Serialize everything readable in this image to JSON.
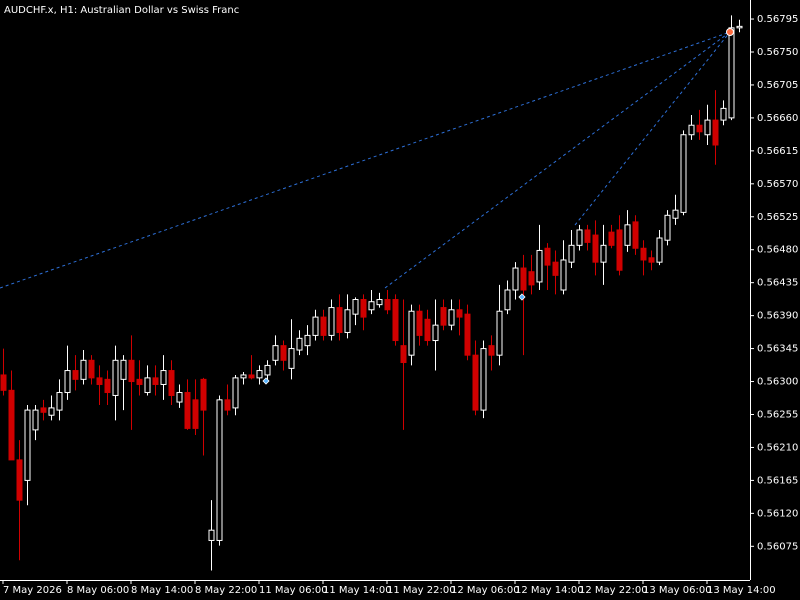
{
  "chart_data": {
    "type": "candlestick",
    "title": "AUDCHF.x, H1:  Australian Dollar vs Swiss Franc",
    "up_color": "#ffffff",
    "down_color": "#d00000",
    "background": "#000000",
    "categories": [
      "7 May 2026",
      null,
      null,
      null,
      null,
      null,
      null,
      null,
      "8 May 06:00",
      null,
      null,
      null,
      null,
      null,
      null,
      null,
      "8 May 14:00",
      null,
      null,
      null,
      null,
      null,
      null,
      null,
      "8 May 22:00",
      null,
      null,
      null,
      null,
      null,
      null,
      null,
      "11 May 06:00",
      null,
      null,
      null,
      null,
      null,
      null,
      null,
      "11 May 14:00",
      null,
      null,
      null,
      null,
      null,
      null,
      null,
      "11 May 22:00",
      null,
      null,
      null,
      null,
      null,
      null,
      null,
      "12 May 06:00",
      null,
      null,
      null,
      null,
      null,
      null,
      null,
      "12 May 14:00",
      null,
      null,
      null,
      null,
      null,
      null,
      null,
      "12 May 22:00",
      null,
      null,
      null,
      null,
      null,
      null,
      null,
      "13 May 06:00",
      null,
      null,
      null,
      null,
      null,
      null,
      null,
      "13 May 14:00",
      null,
      null,
      null,
      null
    ],
    "open": [
      0.56309,
      0.56288,
      0.56193,
      0.56165,
      0.56234,
      0.56264,
      0.56254,
      0.56261,
      0.56285,
      0.56315,
      0.56303,
      0.56329,
      0.56305,
      0.56303,
      0.56281,
      0.56303,
      0.56329,
      0.56303,
      0.56285,
      0.56305,
      0.56296,
      0.56315,
      0.56272,
      0.56285,
      0.56275,
      0.56303,
      0.56083,
      0.56083,
      0.56275,
      0.56264,
      0.56305,
      0.56309,
      0.56305,
      0.56309,
      0.56329,
      0.56349,
      0.56318,
      0.56343,
      0.56349,
      0.56363,
      0.56388,
      0.56363,
      0.56401,
      0.56367,
      0.56392,
      0.56412,
      0.56398,
      0.56405,
      0.56412,
      0.56412,
      0.56349,
      0.56336,
      0.56396,
      0.56385,
      0.56356,
      0.56401,
      0.56377,
      0.56398,
      0.56392,
      0.56336,
      0.56261,
      0.56349,
      0.56336,
      0.56398,
      0.56425,
      0.56455,
      0.5645,
      0.56436,
      0.56482,
      0.56463,
      0.56425,
      0.56463,
      0.56486,
      0.56507,
      0.565,
      0.56463,
      0.56504,
      0.56507,
      0.56486,
      0.56518,
      0.56482,
      0.56469,
      0.56463,
      0.56493,
      0.56523,
      0.56531,
      0.56637,
      0.5665,
      0.56637,
      0.56657,
      0.56657,
      0.5666,
      0.56783
    ],
    "high": [
      0.56345,
      0.56315,
      0.5622,
      0.56268,
      0.56268,
      0.56275,
      0.56281,
      0.56303,
      0.56349,
      0.56336,
      0.56343,
      0.56336,
      0.56322,
      0.56315,
      0.56349,
      0.56336,
      0.56363,
      0.56329,
      0.56322,
      0.56322,
      0.56336,
      0.56329,
      0.56296,
      0.56303,
      0.56303,
      0.56305,
      0.56138,
      0.56281,
      0.56296,
      0.56309,
      0.56313,
      0.56336,
      0.56322,
      0.56329,
      0.56363,
      0.56356,
      0.56385,
      0.5637,
      0.56377,
      0.56398,
      0.56398,
      0.56412,
      0.56419,
      0.56419,
      0.56415,
      0.56419,
      0.56425,
      0.56421,
      0.56425,
      0.56419,
      0.56412,
      0.56405,
      0.56405,
      0.56398,
      0.56412,
      0.56412,
      0.56412,
      0.56412,
      0.56405,
      0.56356,
      0.56356,
      0.56363,
      0.56432,
      0.56438,
      0.56463,
      0.56473,
      0.56473,
      0.56514,
      0.56489,
      0.56479,
      0.56493,
      0.56507,
      0.56514,
      0.56514,
      0.5652,
      0.56514,
      0.56514,
      0.56527,
      0.56534,
      0.56527,
      0.56493,
      0.56479,
      0.56507,
      0.56534,
      0.56555,
      0.56643,
      0.56664,
      0.56671,
      0.56678,
      0.56698,
      0.56684,
      0.568,
      0.56794
    ],
    "low": [
      0.56281,
      0.56193,
      0.56056,
      0.56131,
      0.5622,
      0.56247,
      0.56247,
      0.56247,
      0.56275,
      0.56288,
      0.56296,
      0.56296,
      0.56268,
      0.56268,
      0.56247,
      0.56261,
      0.56234,
      0.56281,
      0.56281,
      0.56281,
      0.56275,
      0.56268,
      0.56264,
      0.56234,
      0.56227,
      0.56199,
      0.56042,
      0.56076,
      0.56254,
      0.56254,
      0.56296,
      0.56303,
      0.56296,
      0.56303,
      0.56322,
      0.56315,
      0.56303,
      0.56336,
      0.56336,
      0.56356,
      0.56356,
      0.56356,
      0.56356,
      0.56359,
      0.56377,
      0.5637,
      0.56392,
      0.56401,
      0.56392,
      0.56349,
      0.56234,
      0.56322,
      0.56349,
      0.56349,
      0.56315,
      0.5637,
      0.5637,
      0.56363,
      0.56329,
      0.56254,
      0.5625,
      0.56315,
      0.56322,
      0.56392,
      0.56412,
      0.56336,
      0.56419,
      0.56425,
      0.56425,
      0.56419,
      0.56419,
      0.56455,
      0.56479,
      0.56479,
      0.56445,
      0.56432,
      0.56482,
      0.56445,
      0.56477,
      0.56473,
      0.56445,
      0.56452,
      0.56459,
      0.56486,
      0.56514,
      0.56527,
      0.5663,
      0.5663,
      0.56623,
      0.56596,
      0.5665,
      0.56657,
      0.56777
    ],
    "close": [
      0.56288,
      0.56193,
      0.56138,
      0.56261,
      0.56261,
      0.56258,
      0.56264,
      0.56285,
      0.56315,
      0.56303,
      0.56329,
      0.56305,
      0.56296,
      0.56285,
      0.56329,
      0.56329,
      0.563,
      0.56296,
      0.56305,
      0.56296,
      0.56315,
      0.56281,
      0.56285,
      0.56236,
      0.56236,
      0.56261,
      0.56097,
      0.56275,
      0.56261,
      0.56305,
      0.56309,
      0.56305,
      0.56315,
      0.56322,
      0.56349,
      0.56329,
      0.56345,
      0.56359,
      0.56363,
      0.56388,
      0.56363,
      0.56401,
      0.56367,
      0.56398,
      0.56412,
      0.56388,
      0.56409,
      0.56412,
      0.56398,
      0.56356,
      0.56326,
      0.56396,
      0.56363,
      0.56356,
      0.56377,
      0.56377,
      0.56398,
      0.56388,
      0.56336,
      0.56261,
      0.56345,
      0.56336,
      0.56396,
      0.56425,
      0.56455,
      0.56425,
      0.56432,
      0.56479,
      0.56459,
      0.56445,
      0.56466,
      0.56486,
      0.56507,
      0.5649,
      0.56463,
      0.56486,
      0.56486,
      0.56452,
      0.56514,
      0.56482,
      0.56466,
      0.56463,
      0.56496,
      0.56527,
      0.56534,
      0.56637,
      0.5665,
      0.56641,
      0.56657,
      0.56623,
      0.56673,
      0.56783,
      0.56785
    ],
    "ylim": [
      0.56029,
      0.56821
    ],
    "yticks": [
      0.56795,
      {
        "value": 0.5675,
        "label": "0.56750"
      },
      0.56705,
      {
        "value": 0.5666,
        "label": "0.56660"
      },
      0.56615,
      {
        "value": 0.5657,
        "label": "0.56570"
      },
      0.56525,
      {
        "value": 0.5648,
        "label": "0.56480"
      },
      0.56435,
      {
        "value": 0.5639,
        "label": "0.56390"
      },
      0.56345,
      {
        "value": 0.563,
        "label": "0.56300"
      },
      0.56255,
      {
        "value": 0.5621,
        "label": "0.56210"
      },
      0.56165,
      {
        "value": 0.5612,
        "label": "0.56120"
      },
      0.56075
    ]
  }
}
